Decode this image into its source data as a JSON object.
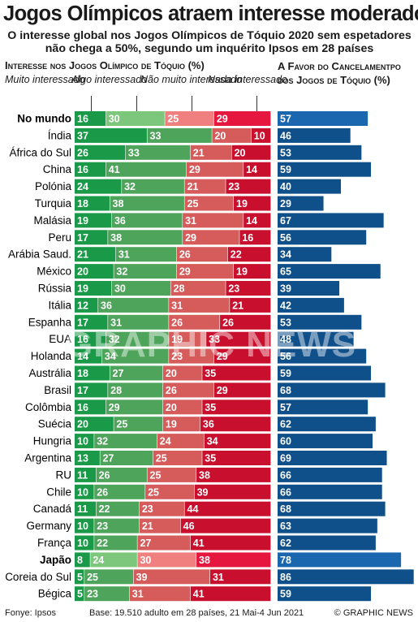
{
  "title": "Jogos Olímpicos atraem interesse moderado",
  "subtitle_line1": "O interesse global nos Jogos Olímpicos de Tóquio 2020 sem espetadores",
  "subtitle_line2": "não chega a 50%, segundo um inquérito Ipsos em 28 países",
  "header_left": "Interesse nos Jogos Olímpico de Tóquio (%)",
  "header_right": "A Favor do Cancelamentpo dos Jogos de Tóquio (%)",
  "footer": {
    "source": "Fonye: Ipsos",
    "base": "Base: 19.510 adulto em 28 países, 21 Mai-4 Jun 2021",
    "credit": "© GRAPHIC NEWS"
  },
  "watermark": "GRAPHIC NEWS",
  "colors": {
    "very_interested": "#1a9a48",
    "somewhat_interested": "#4fa45c",
    "not_very_interested": "#d65b5b",
    "not_at_all_interested": "#c8102e",
    "cancel_bar": "#0f4f8a",
    "highlight_light_green": "#7cc77c",
    "highlight_light_red": "#f08080",
    "highlight_red": "#e5173f",
    "highlight_blue": "#1a67b0"
  },
  "chart_data": [
    {
      "type": "bar",
      "stacked": true,
      "orientation": "horizontal",
      "title": "Interesse nos Jogos Olímpico de Tóquio (%)",
      "categories": [
        "No mundo",
        "Índia",
        "África do Sul",
        "China",
        "Polónia",
        "Turquia",
        "Malásia",
        "Peru",
        "Arábia Saud.",
        "México",
        "Rússia",
        "Itália",
        "Espanha",
        "EUA",
        "Holanda",
        "Austrália",
        "Brasil",
        "Colômbia",
        "Suécia",
        "Hungria",
        "Argentina",
        "RU",
        "Chile",
        "Canadá",
        "Germany",
        "França",
        "Japão",
        "Coreia do Sul",
        "Bégica"
      ],
      "highlighted_categories": [
        "No mundo",
        "Japão"
      ],
      "series": [
        {
          "name": "Muito interessado",
          "values": [
            16,
            37,
            26,
            16,
            24,
            18,
            19,
            17,
            21,
            20,
            19,
            12,
            17,
            16,
            14,
            18,
            17,
            16,
            20,
            10,
            13,
            11,
            10,
            11,
            10,
            10,
            8,
            5,
            5
          ]
        },
        {
          "name": "Algo interessado",
          "values": [
            30,
            33,
            33,
            41,
            32,
            38,
            36,
            38,
            31,
            32,
            30,
            36,
            31,
            32,
            34,
            27,
            28,
            29,
            25,
            32,
            27,
            26,
            26,
            22,
            23,
            22,
            24,
            25,
            23
          ]
        },
        {
          "name": "Não muito interessado",
          "values": [
            25,
            20,
            21,
            29,
            21,
            25,
            31,
            29,
            26,
            29,
            28,
            31,
            26,
            19,
            23,
            20,
            26,
            20,
            19,
            24,
            25,
            25,
            25,
            23,
            21,
            27,
            30,
            39,
            31
          ]
        },
        {
          "name": "Nada interessado",
          "values": [
            29,
            10,
            20,
            14,
            23,
            19,
            14,
            16,
            22,
            19,
            23,
            21,
            26,
            33,
            29,
            35,
            29,
            35,
            36,
            34,
            35,
            38,
            39,
            44,
            46,
            41,
            38,
            31,
            41
          ]
        }
      ],
      "xlim": [
        0,
        100
      ]
    },
    {
      "type": "bar",
      "orientation": "horizontal",
      "title": "A Favor do Cancelamentpo dos Jogos de Tóquio (%)",
      "categories": [
        "No mundo",
        "Índia",
        "África do Sul",
        "China",
        "Polónia",
        "Turquia",
        "Malásia",
        "Peru",
        "Arábia Saud.",
        "México",
        "Rússia",
        "Itália",
        "Espanha",
        "EUA",
        "Holanda",
        "Austrália",
        "Brasil",
        "Colômbia",
        "Suécia",
        "Hungria",
        "Argentina",
        "RU",
        "Chile",
        "Canadá",
        "Germany",
        "França",
        "Japão",
        "Coreia do Sul",
        "Bégica"
      ],
      "values": [
        57,
        46,
        53,
        59,
        40,
        29,
        67,
        56,
        34,
        65,
        39,
        42,
        53,
        48,
        56,
        59,
        68,
        57,
        62,
        60,
        69,
        66,
        66,
        68,
        63,
        62,
        78,
        86,
        59
      ],
      "xlim": [
        0,
        100
      ]
    }
  ]
}
